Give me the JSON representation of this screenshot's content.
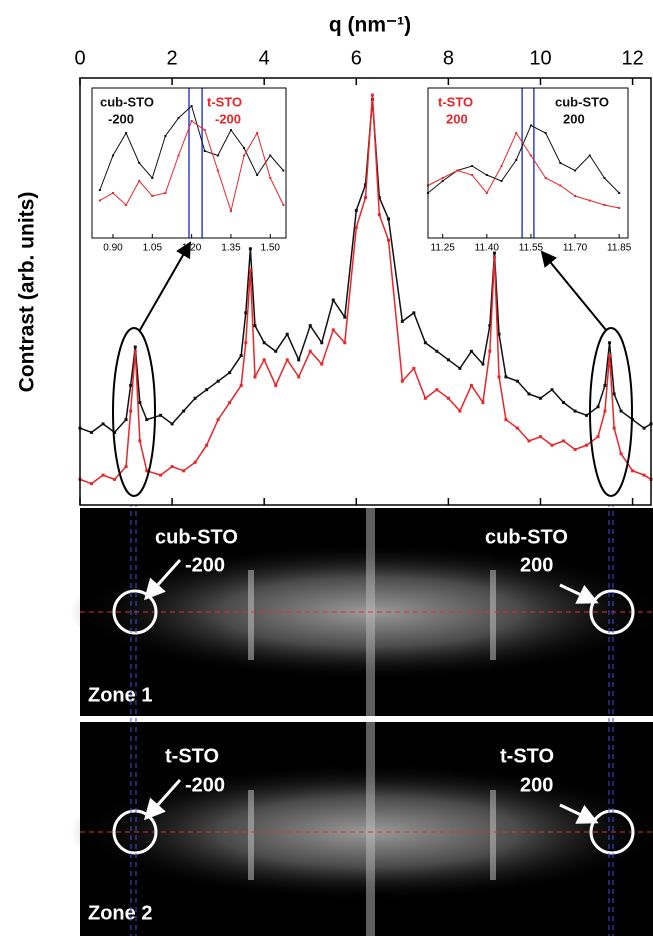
{
  "chart_data": [
    {
      "type": "line",
      "xlabel": "q (nm⁻¹)",
      "ylabel": "Contrast (arb. units)",
      "xlim": [
        0,
        12.4
      ],
      "ylim": [
        0,
        100
      ],
      "xticks": [
        0,
        2,
        4,
        6,
        8,
        10,
        12
      ],
      "x": [
        0,
        0.25,
        0.5,
        0.75,
        1.0,
        1.1,
        1.2,
        1.3,
        1.45,
        1.75,
        2.0,
        2.25,
        2.5,
        2.75,
        3.0,
        3.25,
        3.5,
        3.6,
        3.7,
        3.8,
        4.0,
        4.25,
        4.5,
        4.75,
        5.0,
        5.25,
        5.5,
        5.75,
        6.0,
        6.2,
        6.35,
        6.5,
        6.7,
        7.0,
        7.25,
        7.5,
        7.75,
        8.0,
        8.25,
        8.5,
        8.75,
        8.9,
        9.0,
        9.1,
        9.25,
        9.5,
        9.75,
        10.0,
        10.25,
        10.5,
        10.75,
        11.0,
        11.25,
        11.4,
        11.5,
        11.6,
        11.75,
        12.0,
        12.25,
        12.4
      ],
      "series": [
        {
          "color": "#111111",
          "values": [
            18,
            17,
            19,
            17,
            20,
            28,
            37,
            24,
            20,
            21,
            19,
            22,
            25,
            27,
            29,
            31,
            35,
            45,
            60,
            42,
            38,
            36,
            40,
            34,
            42,
            38,
            48,
            44,
            69,
            75,
            95,
            72,
            67,
            43,
            45,
            38,
            36,
            34,
            32,
            36,
            33,
            42,
            59,
            40,
            30,
            29,
            26,
            25,
            27,
            24,
            22,
            21,
            23,
            28,
            38,
            26,
            22,
            20,
            18,
            19
          ]
        },
        {
          "color": "#e8262a",
          "values": [
            6,
            5,
            7,
            6,
            9,
            22,
            36,
            15,
            8,
            7,
            9,
            8,
            10,
            14,
            20,
            24,
            28,
            38,
            55,
            30,
            34,
            28,
            34,
            30,
            36,
            33,
            41,
            38,
            65,
            72,
            96,
            68,
            62,
            29,
            32,
            25,
            27,
            25,
            22,
            28,
            24,
            36,
            58,
            30,
            20,
            18,
            15,
            16,
            14,
            15,
            13,
            14,
            16,
            22,
            35,
            18,
            12,
            8,
            7,
            6
          ]
        }
      ]
    },
    {
      "type": "line",
      "xlim": [
        0.82,
        1.56
      ],
      "ylim": [
        0,
        100
      ],
      "xticks": [
        {
          "value": 0.9,
          "label": "0.90"
        },
        {
          "value": 1.05,
          "label": "1.05"
        },
        {
          "value": 1.2,
          "label": "1.20"
        },
        {
          "value": 1.35,
          "label": "1.35"
        },
        {
          "value": 1.5,
          "label": "1.50"
        }
      ],
      "x": [
        0.85,
        0.9,
        0.95,
        1.0,
        1.05,
        1.1,
        1.15,
        1.2,
        1.25,
        1.3,
        1.35,
        1.4,
        1.45,
        1.5,
        1.55
      ],
      "series": [
        {
          "color": "#111111",
          "values": [
            32,
            55,
            70,
            50,
            40,
            68,
            80,
            88,
            58,
            55,
            72,
            60,
            42,
            55,
            45
          ]
        },
        {
          "color": "#e8262a",
          "values": [
            25,
            30,
            22,
            38,
            28,
            30,
            55,
            78,
            72,
            45,
            18,
            55,
            70,
            40,
            22
          ]
        }
      ],
      "vlines": [
        1.19,
        1.24
      ],
      "vline_color": "#3344cc",
      "annotations": [
        {
          "lines": [
            "cub-STO",
            "-200"
          ],
          "color": "#111111"
        },
        {
          "lines": [
            "t-STO",
            "-200"
          ],
          "color": "#e8262a"
        }
      ]
    },
    {
      "type": "line",
      "xlim": [
        11.2,
        11.88
      ],
      "ylim": [
        0,
        100
      ],
      "xticks": [
        {
          "value": 11.25,
          "label": "11.25"
        },
        {
          "value": 11.4,
          "label": "11.40"
        },
        11.55,
        {
          "value": 11.7,
          "label": "11.70"
        },
        11.85
      ],
      "x": [
        11.2,
        11.25,
        11.3,
        11.35,
        11.4,
        11.45,
        11.5,
        11.55,
        11.6,
        11.65,
        11.7,
        11.75,
        11.8,
        11.85
      ],
      "series": [
        {
          "color": "#111111",
          "values": [
            30,
            38,
            45,
            48,
            42,
            38,
            52,
            75,
            70,
            50,
            45,
            55,
            40,
            30
          ]
        },
        {
          "color": "#e8262a",
          "values": [
            35,
            40,
            45,
            42,
            30,
            48,
            70,
            55,
            40,
            35,
            28,
            25,
            22,
            20
          ]
        }
      ],
      "vlines": [
        11.52,
        11.56
      ],
      "vline_color": "#3344cc",
      "annotations": [
        {
          "lines": [
            "t-STO",
            "200"
          ],
          "color": "#e8262a"
        },
        {
          "lines": [
            "cub-STO",
            "200"
          ],
          "color": "#111111"
        }
      ]
    }
  ],
  "panels": [
    {
      "zone": "Zone 1",
      "left": [
        "cub-STO",
        "-200"
      ],
      "right": [
        "cub-STO",
        "200"
      ]
    },
    {
      "zone": "Zone 2",
      "left": [
        "t-STO",
        "-200"
      ],
      "right": [
        "t-STO",
        "200"
      ]
    }
  ]
}
